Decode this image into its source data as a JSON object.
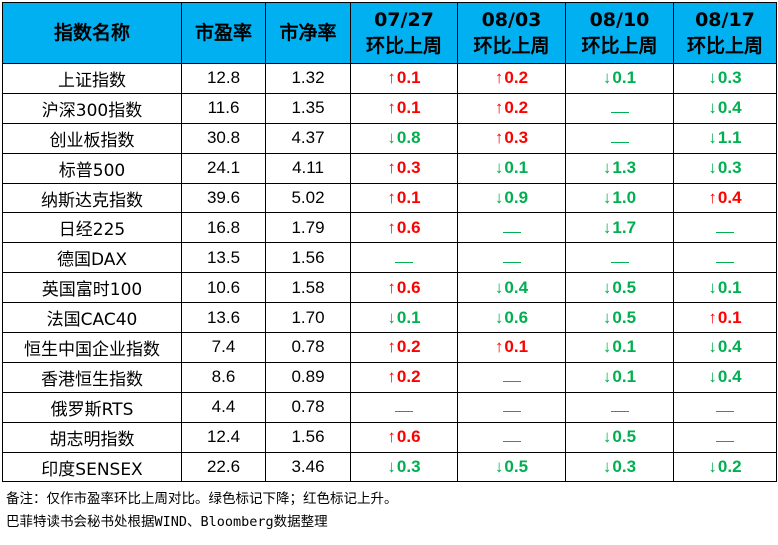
{
  "headers": [
    "指数名称",
    "市盈率",
    "市净率",
    "07/27\n环比上周",
    "08/03\n环比上周",
    "08/10\n环比上周",
    "08/17\n环比上周"
  ],
  "header_lines": [
    [
      "指数名称"
    ],
    [
      "市盈率"
    ],
    [
      "市净率"
    ],
    [
      "07/27",
      "环比上周"
    ],
    [
      "08/03",
      "环比上周"
    ],
    [
      "08/10",
      "环比上周"
    ],
    [
      "08/17",
      "环比上周"
    ]
  ],
  "rows": [
    {
      "name": "上证指数",
      "pe": "12.8",
      "pb": "1.32",
      "changes": [
        {
          "dir": "up",
          "value": "0.1"
        },
        {
          "dir": "up",
          "value": "0.2"
        },
        {
          "dir": "down",
          "value": "0.1"
        },
        {
          "dir": "down",
          "value": "0.3"
        }
      ]
    },
    {
      "name": "沪深300指数",
      "pe": "11.6",
      "pb": "1.35",
      "changes": [
        {
          "dir": "up",
          "value": "0.1"
        },
        {
          "dir": "up",
          "value": "0.2"
        },
        {
          "dir": "flat",
          "value": ""
        },
        {
          "dir": "down",
          "value": "0.4"
        }
      ]
    },
    {
      "name": "创业板指数",
      "pe": "30.8",
      "pb": "4.37",
      "changes": [
        {
          "dir": "down",
          "value": "0.8"
        },
        {
          "dir": "up",
          "value": "0.3"
        },
        {
          "dir": "flat",
          "value": ""
        },
        {
          "dir": "down",
          "value": "1.1"
        }
      ]
    },
    {
      "name": "标普500",
      "pe": "24.1",
      "pb": "4.11",
      "changes": [
        {
          "dir": "up",
          "value": "0.3"
        },
        {
          "dir": "down",
          "value": "0.1"
        },
        {
          "dir": "down",
          "value": "1.3"
        },
        {
          "dir": "down",
          "value": "0.3"
        }
      ]
    },
    {
      "name": "纳斯达克指数",
      "pe": "39.6",
      "pb": "5.02",
      "changes": [
        {
          "dir": "up",
          "value": "0.1"
        },
        {
          "dir": "down",
          "value": "0.9"
        },
        {
          "dir": "down",
          "value": "1.0"
        },
        {
          "dir": "up",
          "value": "0.4"
        }
      ]
    },
    {
      "name": "日经225",
      "pe": "16.8",
      "pb": "1.79",
      "changes": [
        {
          "dir": "up",
          "value": "0.6"
        },
        {
          "dir": "flat",
          "value": ""
        },
        {
          "dir": "down",
          "value": "1.7"
        },
        {
          "dir": "flat",
          "value": ""
        }
      ]
    },
    {
      "name": "德国DAX",
      "pe": "13.5",
      "pb": "1.56",
      "changes": [
        {
          "dir": "flat",
          "value": ""
        },
        {
          "dir": "flat",
          "value": ""
        },
        {
          "dir": "flat",
          "value": ""
        },
        {
          "dir": "flat",
          "value": ""
        }
      ]
    },
    {
      "name": "英国富时100",
      "pe": "10.6",
      "pb": "1.58",
      "changes": [
        {
          "dir": "up",
          "value": "0.6"
        },
        {
          "dir": "down",
          "value": "0.4"
        },
        {
          "dir": "down",
          "value": "0.5"
        },
        {
          "dir": "down",
          "value": "0.1"
        }
      ]
    },
    {
      "name": "法国CAC40",
      "pe": "13.6",
      "pb": "1.70",
      "changes": [
        {
          "dir": "down",
          "value": "0.1"
        },
        {
          "dir": "down",
          "value": "0.6"
        },
        {
          "dir": "down",
          "value": "0.5"
        },
        {
          "dir": "up",
          "value": "0.1"
        }
      ]
    },
    {
      "name": "恒生中国企业指数",
      "pe": "7.4",
      "pb": "0.78",
      "changes": [
        {
          "dir": "up",
          "value": "0.2"
        },
        {
          "dir": "up",
          "value": "0.1"
        },
        {
          "dir": "down",
          "value": "0.1"
        },
        {
          "dir": "down",
          "value": "0.4"
        }
      ]
    },
    {
      "name": "香港恒生指数",
      "pe": "8.6",
      "pb": "0.89",
      "changes": [
        {
          "dir": "up",
          "value": "0.2"
        },
        {
          "dir": "flat",
          "value": ""
        },
        {
          "dir": "down",
          "value": "0.1"
        },
        {
          "dir": "down",
          "value": "0.4"
        }
      ]
    },
    {
      "name": "俄罗斯RTS",
      "pe": "4.4",
      "pb": "0.78",
      "changes": [
        {
          "dir": "flat",
          "value": ""
        },
        {
          "dir": "flat",
          "value": ""
        },
        {
          "dir": "flat",
          "value": ""
        },
        {
          "dir": "flat",
          "value": ""
        }
      ]
    },
    {
      "name": "胡志明指数",
      "pe": "12.4",
      "pb": "1.56",
      "changes": [
        {
          "dir": "up",
          "value": "0.6"
        },
        {
          "dir": "flat",
          "value": ""
        },
        {
          "dir": "down",
          "value": "0.5"
        },
        {
          "dir": "flat",
          "value": ""
        }
      ]
    },
    {
      "name": "印度SENSEX",
      "pe": "22.6",
      "pb": "3.46",
      "changes": [
        {
          "dir": "down",
          "value": "0.3"
        },
        {
          "dir": "down",
          "value": "0.5"
        },
        {
          "dir": "down",
          "value": "0.3"
        },
        {
          "dir": "down",
          "value": "0.2"
        }
      ]
    }
  ],
  "arrows": {
    "up": "↑",
    "down": "↓"
  },
  "colors": {
    "header_bg": "#00b0f0",
    "up": "#ff0000",
    "down": "#00b050"
  },
  "footnotes": [
    "备注：仅作市盈率环比上周对比。绿色标记下降；红色标记上升。",
    "巴菲特读书会秘书处根据WIND、Bloomberg数据整理"
  ]
}
